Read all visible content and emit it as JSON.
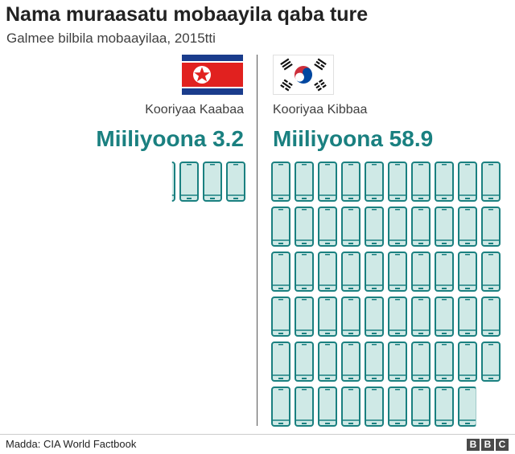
{
  "title": "Nama muraasatu mobaayila qaba ture",
  "subtitle": "Galmee bilbila mobaayilaa, 2015tti",
  "source": "Madda: CIA World Factbook",
  "logo": {
    "letters": [
      "B",
      "B",
      "C"
    ]
  },
  "colors": {
    "accent": "#1a8080",
    "phone_fill": "#cfe9e6",
    "phone_stroke": "#1a8080",
    "nk_red": "#e1211f",
    "nk_blue": "#1a3c8c",
    "sk_red": "#cd2e3a",
    "sk_blue": "#0047a0"
  },
  "chart_data": {
    "type": "pictogram",
    "title": "Nama muraasatu mobaayila qaba ture",
    "subtitle": "Galmee bilbila mobaayilaa, 2015tti",
    "unit_label": "one phone icon = 1 million mobile subscriptions",
    "series": [
      {
        "name": "Kooriyaa Kaabaa",
        "value": 3.2,
        "value_label": "Miiliyoona 3.2",
        "flag": "north-korea-flag"
      },
      {
        "name": "Kooriyaa Kibbaa",
        "value": 58.9,
        "value_label": "Miiliyoona 58.9",
        "flag": "south-korea-flag"
      }
    ]
  }
}
